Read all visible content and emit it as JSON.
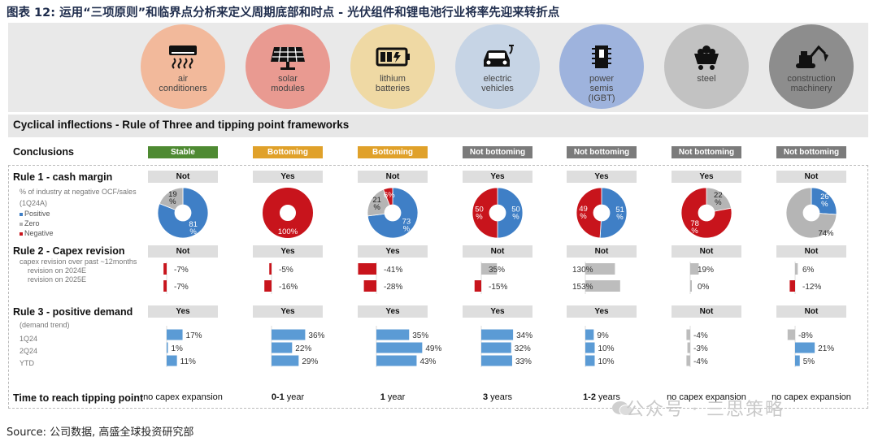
{
  "title": "图表 12: 运用“三项原则”和临界点分析来定义周期底部和时点 - 光伏组件和锂电池行业将率先迎来转折点",
  "source": "Source: 公司数据, 高盛全球投资研究部",
  "watermark": "公众号 · 三思策略",
  "subtitle": "Cyclical inflections - Rule of Three and tipping point frameworks",
  "labels": {
    "conclusions": "Conclusions",
    "rule1": "Rule 1 - cash margin",
    "rule1_sub1": "% of industry at negative OCF/sales",
    "rule1_sub2": "(1Q24A)",
    "legend_positive": "Positive",
    "legend_zero": "Zero",
    "legend_negative": "Negative",
    "rule2": "Rule 2 - Capex revision",
    "rule2_sub1": "capex revision over past ~12months",
    "rule2_sub2": "revision on 2024E",
    "rule2_sub3": "revision on 2025E",
    "rule3": "Rule 3 - positive demand",
    "rule3_sub0": "(demand trend)",
    "rule3_sub1": "1Q24",
    "rule3_sub2": "2Q24",
    "rule3_sub3": "YTD",
    "tipping": "Time to reach tipping point"
  },
  "colors": {
    "positive": "#3f7fc6",
    "zero": "#b5b5b5",
    "negative": "#c8141c",
    "stable": "#4e8a32",
    "bottoming": "#e0a12a",
    "not_bottoming": "#7b7b7b",
    "capex_bar": "#bdbdbd",
    "demand_bar": "#5b9bd5"
  },
  "industries": [
    {
      "name": "air\nconditioners",
      "icon": "air-conditioner-icon",
      "circle_color": "#f2b99b"
    },
    {
      "name": "solar\nmodules",
      "icon": "solar-panel-icon",
      "circle_color": "#e99a91"
    },
    {
      "name": "lithium\nbatteries",
      "icon": "battery-icon",
      "circle_color": "#efd9a4"
    },
    {
      "name": "electric\nvehicles",
      "icon": "electric-vehicle-icon",
      "circle_color": "#c6d4e5"
    },
    {
      "name": "power\nsemis\n(IGBT)",
      "icon": "semiconductor-icon",
      "circle_color": "#9eb3dd"
    },
    {
      "name": "steel",
      "icon": "mine-cart-icon",
      "circle_color": "#c2c2c2"
    },
    {
      "name": "construction\nmachinery",
      "icon": "excavator-icon",
      "circle_color": "#8d8d8d"
    }
  ],
  "columns": [
    {
      "conclusion": "Stable",
      "conclusion_color": "#4e8a32",
      "rule1": "Not",
      "rule2": "Not",
      "rule3": "Yes",
      "tipping": "no capex expansion",
      "tipping_bold": ""
    },
    {
      "conclusion": "Bottoming",
      "conclusion_color": "#e0a12a",
      "rule1": "Yes",
      "rule2": "Yes",
      "rule3": "Yes",
      "tipping": " year",
      "tipping_bold": "0-1"
    },
    {
      "conclusion": "Bottoming",
      "conclusion_color": "#e0a12a",
      "rule1": "Not",
      "rule2": "Yes",
      "rule3": "Yes",
      "tipping": " year",
      "tipping_bold": "1"
    },
    {
      "conclusion": "Not bottoming",
      "conclusion_color": "#7b7b7b",
      "rule1": "Yes",
      "rule2": "Not",
      "rule3": "Yes",
      "tipping": " years",
      "tipping_bold": "3"
    },
    {
      "conclusion": "Not bottoming",
      "conclusion_color": "#7b7b7b",
      "rule1": "Yes",
      "rule2": "Not",
      "rule3": "Yes",
      "tipping": " years",
      "tipping_bold": "1-2"
    },
    {
      "conclusion": "Not bottoming",
      "conclusion_color": "#7b7b7b",
      "rule1": "Yes",
      "rule2": "Not",
      "rule3": "Not",
      "tipping": "no capex expansion",
      "tipping_bold": ""
    },
    {
      "conclusion": "Not bottoming",
      "conclusion_color": "#7b7b7b",
      "rule1": "Not",
      "rule2": "Not",
      "rule3": "Not",
      "tipping": "no capex expansion",
      "tipping_bold": ""
    }
  ],
  "chart_data": [
    {
      "type": "pie",
      "title": "Rule 1 - cash margin: % of industry at negative OCF/sales (1Q24A)",
      "categories": [
        "air conditioners",
        "solar modules",
        "lithium batteries",
        "electric vehicles",
        "power semis (IGBT)",
        "steel",
        "construction machinery"
      ],
      "series": [
        {
          "name": "Positive",
          "values": [
            81,
            0,
            73,
            50,
            51,
            0,
            26
          ]
        },
        {
          "name": "Zero",
          "values": [
            19,
            0,
            21,
            0,
            0,
            22,
            74
          ]
        },
        {
          "name": "Negative",
          "values": [
            0,
            100,
            6,
            50,
            49,
            78,
            0
          ]
        }
      ],
      "labels": [
        [
          "81\n%",
          "19\n%",
          ""
        ],
        [
          "",
          "",
          "100%"
        ],
        [
          "73\n%",
          "21\n%",
          "6%"
        ],
        [
          "50\n%",
          "",
          "50\n%"
        ],
        [
          "51\n%",
          "",
          "49\n%"
        ],
        [
          "",
          "22\n%",
          "78\n%"
        ],
        [
          "26\n%",
          "74%",
          ""
        ]
      ]
    },
    {
      "type": "bar",
      "title": "Rule 2 - Capex revision: capex revision over past ~12months",
      "categories": [
        "air conditioners",
        "solar modules",
        "lithium batteries",
        "electric vehicles",
        "power semis (IGBT)",
        "steel",
        "construction machinery"
      ],
      "series": [
        {
          "name": "revision on 2024E",
          "values": [
            -7,
            -5,
            -41,
            35,
            130,
            19,
            6
          ]
        },
        {
          "name": "revision on 2025E",
          "values": [
            -7,
            -16,
            -28,
            -15,
            153,
            0,
            -12
          ]
        }
      ]
    },
    {
      "type": "bar",
      "title": "Rule 3 - positive demand (demand trend)",
      "categories": [
        "air conditioners",
        "solar modules",
        "lithium batteries",
        "electric vehicles",
        "power semis (IGBT)",
        "steel",
        "construction machinery"
      ],
      "series": [
        {
          "name": "1Q24",
          "values": [
            17,
            36,
            35,
            34,
            9,
            -4,
            -8
          ]
        },
        {
          "name": "2Q24",
          "values": [
            1,
            22,
            49,
            32,
            10,
            -3,
            21
          ]
        },
        {
          "name": "YTD",
          "values": [
            11,
            29,
            43,
            33,
            10,
            -4,
            5
          ]
        }
      ]
    }
  ]
}
